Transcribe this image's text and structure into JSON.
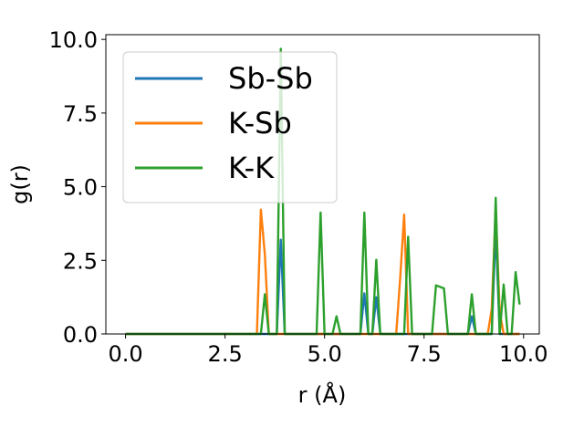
{
  "chart_data": {
    "type": "line",
    "title": "",
    "xlabel": "r (Å)",
    "ylabel": "g(r)",
    "xlim": [
      -0.495,
      10.395
    ],
    "ylim": [
      0,
      10.16
    ],
    "x_ticks": [
      "0.0",
      "2.5",
      "5.0",
      "7.5",
      "10.0"
    ],
    "y_ticks": [
      "0.0",
      "2.5",
      "5.0",
      "7.5",
      "10.0"
    ],
    "grid": false,
    "legend_position": "top-left",
    "series": [
      {
        "name": "Sb-Sb",
        "color": "#1f77b4",
        "points": [
          [
            0.0,
            0
          ],
          [
            3.8,
            0
          ],
          [
            3.9,
            3.2
          ],
          [
            4.0,
            0
          ],
          [
            5.9,
            0
          ],
          [
            6.0,
            1.38
          ],
          [
            6.1,
            0
          ],
          [
            6.2,
            0
          ],
          [
            6.3,
            1.25
          ],
          [
            6.4,
            0
          ],
          [
            8.6,
            0
          ],
          [
            8.7,
            0.6
          ],
          [
            8.8,
            0
          ],
          [
            9.2,
            0
          ],
          [
            9.3,
            3.6
          ],
          [
            9.4,
            0
          ],
          [
            9.9,
            0
          ]
        ]
      },
      {
        "name": "K-Sb",
        "color": "#ff7f0e",
        "points": [
          [
            0.0,
            0
          ],
          [
            3.3,
            0
          ],
          [
            3.4,
            4.22
          ],
          [
            3.5,
            2.7
          ],
          [
            3.6,
            0
          ],
          [
            6.8,
            0
          ],
          [
            6.9,
            1.9
          ],
          [
            7.0,
            4.05
          ],
          [
            7.1,
            0
          ],
          [
            9.1,
            0
          ],
          [
            9.2,
            0.85
          ],
          [
            9.3,
            4.25
          ],
          [
            9.4,
            0.75
          ],
          [
            9.5,
            0
          ],
          [
            9.9,
            0
          ]
        ]
      },
      {
        "name": "K-K",
        "color": "#2ca02c",
        "points": [
          [
            0.0,
            0
          ],
          [
            3.4,
            0
          ],
          [
            3.5,
            1.35
          ],
          [
            3.6,
            0
          ],
          [
            3.8,
            0
          ],
          [
            3.9,
            9.68
          ],
          [
            4.0,
            0
          ],
          [
            4.8,
            0
          ],
          [
            4.9,
            4.12
          ],
          [
            5.0,
            0
          ],
          [
            5.2,
            0
          ],
          [
            5.3,
            0.6
          ],
          [
            5.4,
            0
          ],
          [
            5.9,
            0
          ],
          [
            6.0,
            4.12
          ],
          [
            6.1,
            0
          ],
          [
            6.2,
            0
          ],
          [
            6.3,
            2.52
          ],
          [
            6.4,
            0
          ],
          [
            7.0,
            0
          ],
          [
            7.1,
            3.3
          ],
          [
            7.2,
            0
          ],
          [
            7.7,
            0
          ],
          [
            7.8,
            1.65
          ],
          [
            8.0,
            1.55
          ],
          [
            8.1,
            0
          ],
          [
            8.6,
            0
          ],
          [
            8.7,
            1.35
          ],
          [
            8.8,
            0
          ],
          [
            9.2,
            0
          ],
          [
            9.3,
            4.62
          ],
          [
            9.4,
            0
          ],
          [
            9.5,
            1.68
          ],
          [
            9.6,
            0
          ],
          [
            9.7,
            0
          ],
          [
            9.8,
            2.1
          ],
          [
            9.9,
            1.0
          ]
        ]
      }
    ]
  }
}
